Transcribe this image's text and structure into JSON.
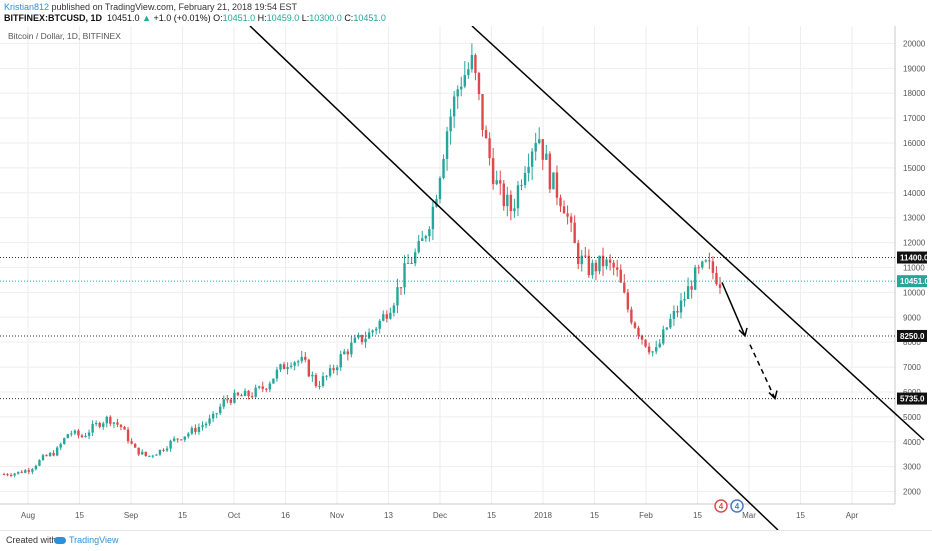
{
  "header": {
    "author": "Kristian812",
    "published_text": " published on TradingView.com, February 21, 2018 19:54 EST",
    "symbol_line": "BITFINEX:BTCUSD, 1D",
    "last": "10451.0",
    "change": "+1.0 (+0.01%)",
    "o_label": "O:",
    "o_value": "10451.0",
    "h_label": "H:",
    "h_value": "10459.0",
    "l_label": "L:",
    "l_value": "10300.0",
    "c_label": "C:",
    "c_value": "10451.0"
  },
  "chart_title": "Bitcoin / Dollar, 1D, BITFINEX",
  "footer": {
    "created_with": "Created with",
    "brand": "TradingView"
  },
  "colors": {
    "up": "#26a69a",
    "down": "#e0494b",
    "grid": "#eeeeee",
    "line": "#000000",
    "last_price": "#26a69a"
  },
  "chart_data": {
    "type": "candlestick",
    "y_ticks": [
      2000,
      3000,
      4000,
      5000,
      6000,
      7000,
      8000,
      9000,
      10000,
      11000,
      12000,
      13000,
      14000,
      15000,
      16000,
      17000,
      18000,
      19000,
      20000
    ],
    "ylim": [
      1500,
      20700
    ],
    "x_ticks": [
      "Aug",
      "15",
      "Sep",
      "15",
      "Oct",
      "16",
      "Nov",
      "13",
      "Dec",
      "15",
      "2018",
      "15",
      "Feb",
      "15",
      "Mar",
      "15",
      "Apr"
    ],
    "price_labels": [
      {
        "text": "11400.0",
        "value": 11400,
        "style": "dark"
      },
      {
        "text": "10451.0",
        "value": 10451,
        "style": "last"
      },
      {
        "text": "8250.0",
        "value": 8250,
        "style": "dark"
      },
      {
        "text": "5735.0",
        "value": 5735,
        "style": "dark"
      }
    ],
    "horizontal_levels": [
      11400,
      8250,
      5735,
      10451
    ],
    "trend_channel": "descending",
    "projection": "downward arrows toward 8250 then 5735",
    "ohlc_anchor_prices": [
      2700,
      2750,
      2900,
      3350,
      3600,
      4400,
      4200,
      4650,
      4950,
      4600,
      3700,
      3400,
      3650,
      4050,
      4300,
      4600,
      4900,
      5700,
      5800,
      5900,
      6200,
      6800,
      7300,
      7200,
      6300,
      6700,
      7500,
      8000,
      8300,
      8900,
      9800,
      11100,
      11800,
      13500,
      16500,
      18500,
      19200,
      16000,
      14000,
      13300,
      15200,
      16500,
      14500,
      13600,
      11500,
      10900,
      11200,
      10900,
      9200,
      8200,
      7500,
      8700,
      9500,
      10600,
      11100,
      10451
    ]
  }
}
